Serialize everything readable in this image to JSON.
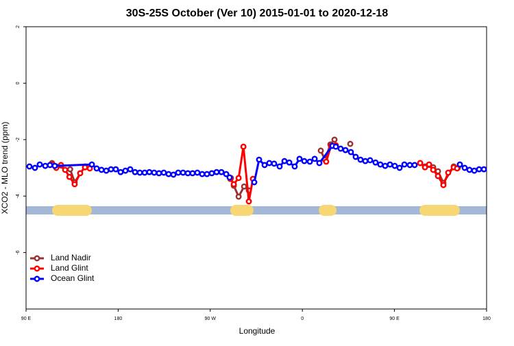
{
  "chart_data": {
    "type": "line",
    "title": "30S-25S October (Ver 10)   2015-01-01 to 2020-12-18",
    "x_label": "Longitude",
    "y_label": "XCO2 - MLO trend (ppm)",
    "xlim": [
      90,
      540
    ],
    "ylim": [
      -8,
      2
    ],
    "xticks": [
      {
        "value": 90,
        "label": "90 E"
      },
      {
        "value": 180,
        "label": "180"
      },
      {
        "value": 270,
        "label": "90 W"
      },
      {
        "value": 360,
        "label": "0"
      },
      {
        "value": 450,
        "label": "90 E"
      },
      {
        "value": 540,
        "label": "180"
      }
    ],
    "yticks": [
      2,
      0,
      -2,
      -4,
      -6
    ],
    "legend": "bottom-left",
    "series": [
      {
        "name": "Land Nadir",
        "color": "#993333",
        "x": [
          115.4,
          119.5,
          133.1,
          137.5,
          147.6,
          null,
          290.2,
          293.0,
          297.7,
          303.1,
          307.7,
          null,
          378.0,
          382.0,
          387.4,
          391.4,
          null,
          406.8,
          null,
          475.1,
          479.8,
          487.8,
          492.5,
          497.8,
          507.9,
          511.9
        ],
        "values": [
          -2.83,
          -2.95,
          -3.05,
          -3.51,
          -2.95,
          null,
          -3.36,
          -3.63,
          -4.02,
          -3.66,
          -3.8,
          null,
          -2.39,
          -2.71,
          -2.17,
          -2.0,
          null,
          -2.15,
          null,
          -2.83,
          -2.95,
          -2.98,
          -3.12,
          -3.53,
          -2.95,
          -3.0
        ]
      },
      {
        "name": "Land Glint",
        "color": "#ff0000",
        "x": [
          115.4,
          119.5,
          124.2,
          128.2,
          132.4,
          137.5,
          142.9,
          147.6,
          152.3,
          null,
          289.6,
          293.0,
          297.7,
          302.4,
          307.7,
          311.7,
          null,
          383.3,
          388.0,
          392.7,
          null,
          475.1,
          479.8,
          483.8,
          487.8,
          492.5,
          497.8,
          502.5,
          507.9,
          511.2
        ],
        "values": [
          -2.88,
          -3.0,
          -2.9,
          -3.07,
          -3.32,
          -3.58,
          -3.19,
          -2.98,
          -3.02,
          null,
          -3.39,
          -3.58,
          -3.36,
          -2.25,
          -4.19,
          -3.39,
          null,
          -2.78,
          -2.22,
          -2.2,
          null,
          -2.83,
          -2.98,
          -2.88,
          -3.07,
          -3.29,
          -3.61,
          -3.17,
          -2.98,
          -3.02
        ]
      },
      {
        "name": "Ocean Glint",
        "color": "#0000ff",
        "x": [
          93.3,
          98.7,
          103.4,
          108.8,
          113.4,
          118.1,
          154.3,
          159.0,
          163.7,
          168.4,
          173.0,
          177.7,
          182.4,
          187.1,
          191.8,
          196.5,
          201.2,
          205.9,
          210.5,
          215.2,
          219.9,
          224.6,
          229.3,
          234.0,
          238.7,
          243.4,
          248.1,
          252.7,
          257.4,
          262.1,
          266.8,
          271.5,
          276.2,
          280.9,
          285.6,
          288.9,
          null,
          313.0,
          317.7,
          323.1,
          327.7,
          332.4,
          337.8,
          342.5,
          347.2,
          352.5,
          357.2,
          361.9,
          367.3,
          372.0,
          376.6,
          389.4,
          392.7,
          397.4,
          402.1,
          407.4,
          412.1,
          416.8,
          421.5,
          426.2,
          431.5,
          436.2,
          440.9,
          445.6,
          450.3,
          455.0,
          459.7,
          465.0,
          469.7,
          null,
          513.9,
          518.6,
          523.3,
          528.0,
          532.7,
          537.4
        ],
        "values": [
          -2.95,
          -3.0,
          -2.88,
          -2.93,
          -2.9,
          -2.93,
          -2.88,
          -3.02,
          -3.07,
          -3.1,
          -3.05,
          -3.05,
          -3.15,
          -3.1,
          -3.05,
          -3.15,
          -3.17,
          -3.17,
          -3.15,
          -3.17,
          -3.19,
          -3.17,
          -3.22,
          -3.24,
          -3.17,
          -3.17,
          -3.19,
          -3.19,
          -3.17,
          -3.22,
          -3.22,
          -3.19,
          -3.15,
          -3.15,
          -3.22,
          -3.34,
          null,
          -3.51,
          -2.71,
          -2.9,
          -2.83,
          -2.85,
          -2.95,
          -2.76,
          -2.81,
          -2.95,
          -2.68,
          -2.76,
          -2.78,
          -2.68,
          -2.83,
          -2.22,
          -2.25,
          -2.32,
          -2.37,
          -2.44,
          -2.61,
          -2.71,
          -2.76,
          -2.73,
          -2.81,
          -2.88,
          -2.93,
          -2.88,
          -2.93,
          -3.0,
          -2.88,
          -2.9,
          -2.9,
          null,
          -2.88,
          -3.0,
          -3.07,
          -3.1,
          -3.05,
          -3.05
        ]
      }
    ]
  }
}
